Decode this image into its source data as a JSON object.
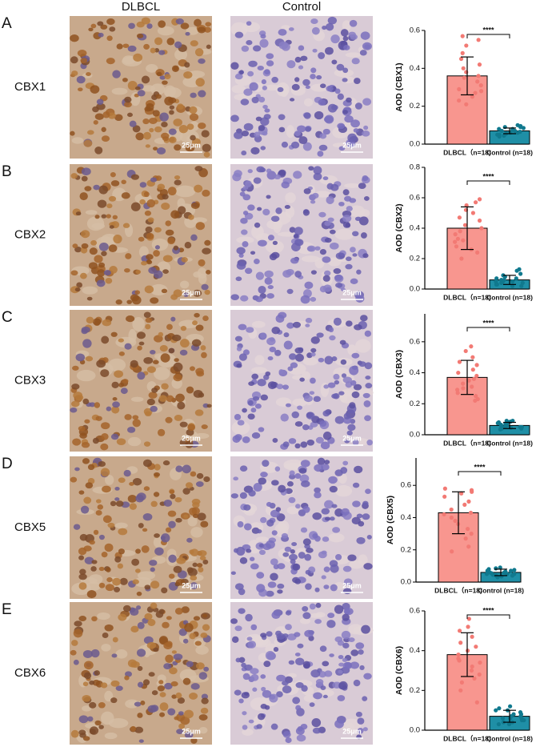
{
  "columns": [
    "DLBCL",
    "Control"
  ],
  "panels": [
    {
      "letter": "A",
      "label": "CBX1",
      "scale_bars": [
        "25μm",
        "25μm"
      ]
    },
    {
      "letter": "B",
      "label": "CBX2",
      "scale_bars": [
        "25μm",
        "25μm"
      ]
    },
    {
      "letter": "C",
      "label": "CBX3",
      "scale_bars": [
        "25μm",
        "25μm"
      ]
    },
    {
      "letter": "D",
      "label": "CBX5",
      "scale_bars": [
        "25μm",
        "25μm"
      ]
    },
    {
      "letter": "E",
      "label": "CBX6",
      "scale_bars": [
        "25μm",
        "25μm"
      ]
    }
  ],
  "chart_data": [
    {
      "type": "bar",
      "ylabel": "AOD (CBX1)",
      "categories": [
        "DLBCL（n=18)",
        "Control (n=18)"
      ],
      "values": [
        0.36,
        0.07
      ],
      "errors": [
        0.1,
        0.015
      ],
      "points": [
        [
          0.57,
          0.55,
          0.52,
          0.48,
          0.45,
          0.42,
          0.4,
          0.38,
          0.36,
          0.35,
          0.33,
          0.31,
          0.29,
          0.27,
          0.25,
          0.23,
          0.21,
          0.28
        ],
        [
          0.1,
          0.095,
          0.09,
          0.09,
          0.085,
          0.08,
          0.08,
          0.075,
          0.07,
          0.07,
          0.065,
          0.06,
          0.06,
          0.055,
          0.05,
          0.05,
          0.045,
          0.04
        ]
      ],
      "colors": [
        "#f8968f",
        "#1f8fa6"
      ],
      "point_colors": [
        "#f27a74",
        "#10798e"
      ],
      "annotation": "****",
      "ylim": [
        0,
        0.6
      ],
      "yticks": [
        {
          "value": 0,
          "label": "0.0"
        },
        0.2,
        0.4,
        0.6
      ]
    },
    {
      "type": "bar",
      "ylabel": "AOD (CBX2)",
      "categories": [
        "DLBCL（n=18)",
        "Control (n=18)"
      ],
      "values": [
        0.4,
        0.06
      ],
      "errors": [
        0.14,
        0.03
      ],
      "points": [
        [
          0.59,
          0.57,
          0.55,
          0.52,
          0.5,
          0.47,
          0.45,
          0.42,
          0.4,
          0.38,
          0.36,
          0.33,
          0.31,
          0.28,
          0.26,
          0.24,
          0.2,
          0.32
        ],
        [
          0.13,
          0.12,
          0.1,
          0.09,
          0.08,
          0.07,
          0.07,
          0.06,
          0.06,
          0.05,
          0.05,
          0.04,
          0.04,
          0.03,
          0.03,
          0.02,
          0.02,
          0.05
        ]
      ],
      "colors": [
        "#f8968f",
        "#1f8fa6"
      ],
      "point_colors": [
        "#f27a74",
        "#10798e"
      ],
      "annotation": "****",
      "ylim": [
        0,
        0.8
      ],
      "yticks": [
        {
          "value": 0,
          "label": "0.0"
        },
        0.2,
        0.4,
        0.6,
        0.8
      ]
    },
    {
      "type": "bar",
      "ylabel": "AOD (CBX3)",
      "categories": [
        "DLBCL（n=18)",
        "Control (n=18)"
      ],
      "values": [
        0.37,
        0.06
      ],
      "errors": [
        0.11,
        0.02
      ],
      "points": [
        [
          0.57,
          0.54,
          0.5,
          0.47,
          0.45,
          0.42,
          0.4,
          0.38,
          0.36,
          0.35,
          0.33,
          0.31,
          0.29,
          0.27,
          0.25,
          0.23,
          0.22,
          0.3
        ],
        [
          0.09,
          0.09,
          0.085,
          0.08,
          0.08,
          0.075,
          0.07,
          0.065,
          0.06,
          0.06,
          0.055,
          0.05,
          0.05,
          0.045,
          0.04,
          0.04,
          0.035,
          0.05
        ]
      ],
      "colors": [
        "#f8968f",
        "#1f8fa6"
      ],
      "point_colors": [
        "#f27a74",
        "#10798e"
      ],
      "annotation": "****",
      "ylim": [
        0,
        0.78
      ],
      "yticks": [
        {
          "value": 0,
          "label": "0.0"
        },
        0.2,
        0.4,
        0.6
      ]
    },
    {
      "type": "bar",
      "ylabel": "AOD (CBX5)",
      "categories": [
        "DLBCL（n=18)",
        "Control (n=18)"
      ],
      "values": [
        0.43,
        0.06
      ],
      "errors": [
        0.13,
        0.02
      ],
      "points": [
        [
          0.58,
          0.57,
          0.56,
          0.55,
          0.53,
          0.5,
          0.48,
          0.45,
          0.43,
          0.4,
          0.38,
          0.36,
          0.33,
          0.3,
          0.27,
          0.22,
          0.19,
          0.42
        ],
        [
          0.09,
          0.085,
          0.08,
          0.075,
          0.07,
          0.07,
          0.065,
          0.06,
          0.06,
          0.055,
          0.05,
          0.05,
          0.045,
          0.04,
          0.04,
          0.035,
          0.03,
          0.05
        ]
      ],
      "colors": [
        "#f8968f",
        "#1f8fa6"
      ],
      "point_colors": [
        "#f27a74",
        "#10798e"
      ],
      "annotation": "****",
      "ylim": [
        0,
        0.77
      ],
      "yticks": [
        {
          "value": 0,
          "label": "0.0"
        },
        0.2,
        0.4,
        0.6
      ]
    },
    {
      "type": "bar",
      "ylabel": "AOD (CBX6)",
      "categories": [
        "DLBCL（n=18)",
        "Control (n=18)"
      ],
      "values": [
        0.38,
        0.07
      ],
      "errors": [
        0.11,
        0.03
      ],
      "points": [
        [
          0.56,
          0.52,
          0.5,
          0.47,
          0.44,
          0.42,
          0.4,
          0.38,
          0.36,
          0.34,
          0.32,
          0.3,
          0.28,
          0.26,
          0.24,
          0.2,
          0.14,
          0.35
        ],
        [
          0.12,
          0.11,
          0.1,
          0.1,
          0.09,
          0.08,
          0.08,
          0.07,
          0.07,
          0.06,
          0.06,
          0.05,
          0.05,
          0.04,
          0.04,
          0.03,
          0.03,
          0.06
        ]
      ],
      "colors": [
        "#f8968f",
        "#1f8fa6"
      ],
      "point_colors": [
        "#f27a74",
        "#10798e"
      ],
      "annotation": "****",
      "ylim": [
        0,
        0.6
      ],
      "yticks": [
        {
          "value": 0,
          "label": "0.0"
        },
        0.2,
        0.4,
        0.6
      ]
    }
  ]
}
